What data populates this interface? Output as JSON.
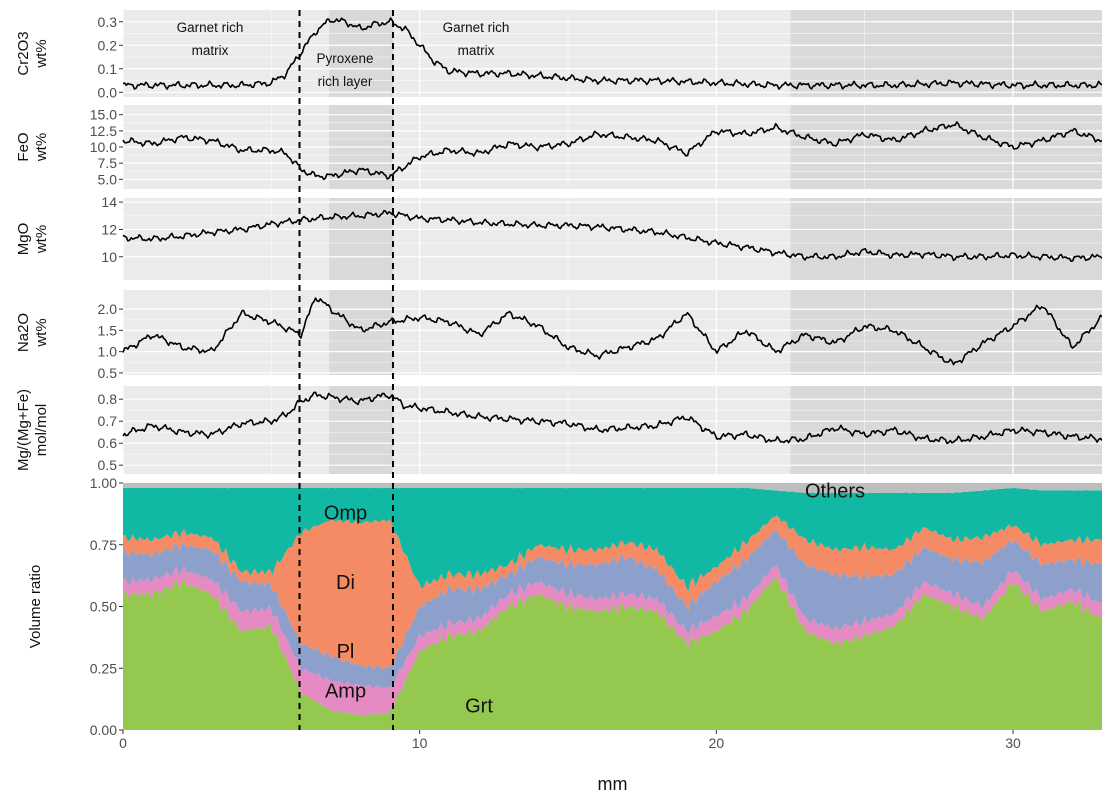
{
  "chart_data": [
    {
      "type": "line",
      "ylabel": [
        "Cr2O3",
        "wt%"
      ],
      "ylim": [
        -0.02,
        0.35
      ],
      "yticks": [
        0.0,
        0.1,
        0.2,
        0.3
      ],
      "ytick_labels": [
        "0.0",
        "0.1",
        "0.2",
        "0.3"
      ],
      "series": [
        {
          "x": [
            0,
            1,
            2,
            3,
            4,
            5,
            5.5,
            6,
            6.5,
            7,
            7.5,
            8,
            8.5,
            9,
            9.5,
            10,
            10.5,
            11,
            12,
            13,
            14,
            15,
            16,
            18,
            20,
            22,
            24,
            26,
            28,
            30,
            32,
            33
          ],
          "y": [
            0.03,
            0.03,
            0.03,
            0.03,
            0.03,
            0.04,
            0.08,
            0.17,
            0.26,
            0.31,
            0.3,
            0.27,
            0.29,
            0.3,
            0.27,
            0.2,
            0.13,
            0.09,
            0.08,
            0.08,
            0.07,
            0.06,
            0.05,
            0.05,
            0.04,
            0.03,
            0.03,
            0.03,
            0.04,
            0.03,
            0.03,
            0.03
          ]
        }
      ]
    },
    {
      "type": "line",
      "ylabel": [
        "FeO",
        "wt%"
      ],
      "ylim": [
        3.5,
        16.5
      ],
      "yticks": [
        5.0,
        7.5,
        10.0,
        12.5,
        15.0
      ],
      "ytick_labels": [
        "5.0",
        "7.5",
        "10.0",
        "12.5",
        "15.0"
      ],
      "series": [
        {
          "x": [
            0,
            1,
            2,
            3,
            4,
            5,
            5.5,
            6,
            6.5,
            7,
            7.5,
            8,
            8.5,
            9,
            9.5,
            10,
            11,
            12,
            13,
            14,
            15,
            16,
            17,
            18,
            19,
            20,
            21,
            22,
            23,
            24,
            25,
            26,
            27,
            28,
            29,
            30,
            31,
            32,
            33
          ],
          "y": [
            11.0,
            10.5,
            11.5,
            11.0,
            9.5,
            9.5,
            9.0,
            6.5,
            5.5,
            5.5,
            6.0,
            6.5,
            6.0,
            5.5,
            7.0,
            8.5,
            9.5,
            9.0,
            10.5,
            10.0,
            10.5,
            12.0,
            11.5,
            11.0,
            9.0,
            12.5,
            12.0,
            13.0,
            11.5,
            10.5,
            12.0,
            11.0,
            12.5,
            13.5,
            11.5,
            10.0,
            11.0,
            12.5,
            11.0
          ]
        }
      ]
    },
    {
      "type": "line",
      "ylabel": [
        "MgO",
        "wt%"
      ],
      "ylim": [
        8.3,
        14.3
      ],
      "yticks": [
        10,
        12,
        14
      ],
      "ytick_labels": [
        "10",
        "12",
        "14"
      ],
      "series": [
        {
          "x": [
            0,
            1,
            2,
            3,
            4,
            5,
            6,
            7,
            8,
            9,
            10,
            11,
            12,
            13,
            14,
            15,
            16,
            17,
            18,
            19,
            20,
            21,
            22,
            23,
            24,
            25,
            26,
            27,
            28,
            29,
            30,
            31,
            32,
            33
          ],
          "y": [
            11.4,
            11.3,
            11.5,
            11.8,
            12.0,
            12.4,
            12.7,
            12.9,
            13.0,
            13.2,
            12.8,
            12.7,
            12.5,
            12.4,
            12.3,
            12.3,
            12.2,
            12.0,
            11.8,
            11.4,
            11.0,
            10.7,
            10.3,
            10.0,
            10.0,
            10.4,
            10.1,
            10.2,
            10.0,
            10.0,
            10.1,
            10.0,
            9.9,
            10.0
          ]
        }
      ]
    },
    {
      "type": "line",
      "ylabel": [
        "Na2O",
        "wt%"
      ],
      "ylim": [
        0.45,
        2.45
      ],
      "yticks": [
        0.5,
        1.0,
        1.5,
        2.0
      ],
      "ytick_labels": [
        "0.5",
        "1.0",
        "1.5",
        "2.0"
      ],
      "series": [
        {
          "x": [
            0,
            1,
            2,
            3,
            4,
            5,
            6,
            6.5,
            7,
            8,
            9,
            10,
            11,
            12,
            13,
            14,
            15,
            16,
            17,
            18,
            19,
            20,
            21,
            22,
            23,
            24,
            25,
            26,
            27,
            28,
            29,
            30,
            31,
            32,
            33
          ],
          "y": [
            1.0,
            1.4,
            1.1,
            1.0,
            1.9,
            1.7,
            1.4,
            2.3,
            2.0,
            1.5,
            1.7,
            1.8,
            1.7,
            1.4,
            1.9,
            1.6,
            1.1,
            0.9,
            1.1,
            1.3,
            1.9,
            1.0,
            1.5,
            1.0,
            1.4,
            1.2,
            1.6,
            1.5,
            1.1,
            0.7,
            1.2,
            1.6,
            2.1,
            1.1,
            1.8
          ]
        }
      ]
    },
    {
      "type": "line",
      "ylabel": [
        "Mg/(Mg+Fe)",
        "mol/mol"
      ],
      "ylim": [
        0.46,
        0.86
      ],
      "yticks": [
        0.5,
        0.6,
        0.7,
        0.8
      ],
      "ytick_labels": [
        "0.5",
        "0.6",
        "0.7",
        "0.8"
      ],
      "series": [
        {
          "x": [
            0,
            1,
            2,
            3,
            4,
            5,
            5.5,
            6,
            6.5,
            7,
            7.5,
            8,
            8.5,
            9,
            9.5,
            10,
            11,
            12,
            13,
            14,
            15,
            16,
            17,
            18,
            19,
            20,
            21,
            22,
            23,
            24,
            25,
            26,
            27,
            28,
            29,
            30,
            31,
            32,
            33
          ],
          "y": [
            0.64,
            0.68,
            0.65,
            0.64,
            0.69,
            0.7,
            0.73,
            0.79,
            0.82,
            0.81,
            0.8,
            0.79,
            0.81,
            0.82,
            0.77,
            0.76,
            0.74,
            0.72,
            0.71,
            0.7,
            0.69,
            0.66,
            0.67,
            0.68,
            0.72,
            0.63,
            0.64,
            0.61,
            0.62,
            0.67,
            0.64,
            0.66,
            0.62,
            0.61,
            0.63,
            0.66,
            0.65,
            0.63,
            0.62
          ]
        }
      ]
    },
    {
      "type": "area",
      "ylabel": "Volume ratio",
      "xlabel": "mm",
      "xlim": [
        0,
        33
      ],
      "xticks": [
        0,
        10,
        20,
        30
      ],
      "xtick_labels": [
        "0",
        "10",
        "20",
        "30"
      ],
      "ylim": [
        0,
        1
      ],
      "yticks": [
        0,
        0.25,
        0.5,
        0.75,
        1.0
      ],
      "ytick_labels": [
        "0.00",
        "0.25",
        "0.50",
        "0.75",
        "1.00"
      ],
      "x": [
        0,
        1,
        2,
        3,
        4,
        5,
        6,
        7,
        8,
        9,
        10,
        11,
        12,
        13,
        14,
        15,
        16,
        17,
        18,
        19,
        20,
        21,
        22,
        23,
        24,
        25,
        26,
        27,
        28,
        29,
        30,
        31,
        32,
        33
      ],
      "series": [
        {
          "name": "Grt",
          "color": "#95c84e",
          "values": [
            0.55,
            0.55,
            0.6,
            0.55,
            0.4,
            0.42,
            0.15,
            0.08,
            0.06,
            0.07,
            0.32,
            0.38,
            0.4,
            0.5,
            0.55,
            0.5,
            0.48,
            0.5,
            0.48,
            0.35,
            0.4,
            0.48,
            0.62,
            0.4,
            0.35,
            0.38,
            0.42,
            0.55,
            0.5,
            0.45,
            0.6,
            0.48,
            0.52,
            0.45
          ]
        },
        {
          "name": "Amp",
          "color": "#e68ac3",
          "values": [
            0.05,
            0.06,
            0.05,
            0.06,
            0.08,
            0.07,
            0.1,
            0.12,
            0.12,
            0.1,
            0.06,
            0.05,
            0.05,
            0.05,
            0.05,
            0.05,
            0.05,
            0.05,
            0.05,
            0.05,
            0.06,
            0.05,
            0.05,
            0.05,
            0.06,
            0.06,
            0.05,
            0.05,
            0.05,
            0.05,
            0.05,
            0.05,
            0.05,
            0.06
          ]
        },
        {
          "name": "Pl",
          "color": "#8da0cb",
          "values": [
            0.12,
            0.1,
            0.1,
            0.12,
            0.12,
            0.1,
            0.1,
            0.1,
            0.08,
            0.08,
            0.12,
            0.14,
            0.12,
            0.08,
            0.1,
            0.12,
            0.14,
            0.15,
            0.12,
            0.1,
            0.14,
            0.16,
            0.14,
            0.22,
            0.22,
            0.18,
            0.16,
            0.14,
            0.14,
            0.18,
            0.12,
            0.14,
            0.12,
            0.16
          ]
        },
        {
          "name": "Di",
          "color": "#f48b64",
          "values": [
            0.06,
            0.06,
            0.05,
            0.05,
            0.04,
            0.05,
            0.45,
            0.55,
            0.58,
            0.6,
            0.08,
            0.06,
            0.06,
            0.04,
            0.05,
            0.06,
            0.06,
            0.06,
            0.08,
            0.08,
            0.06,
            0.07,
            0.06,
            0.1,
            0.1,
            0.12,
            0.1,
            0.08,
            0.08,
            0.1,
            0.06,
            0.08,
            0.08,
            0.1
          ]
        },
        {
          "name": "Omp",
          "color": "#11b8a4",
          "values": [
            0.2,
            0.21,
            0.18,
            0.2,
            0.34,
            0.34,
            0.18,
            0.13,
            0.14,
            0.13,
            0.4,
            0.35,
            0.35,
            0.31,
            0.23,
            0.25,
            0.25,
            0.22,
            0.25,
            0.4,
            0.32,
            0.22,
            0.1,
            0.19,
            0.23,
            0.22,
            0.23,
            0.14,
            0.19,
            0.19,
            0.15,
            0.22,
            0.2,
            0.2
          ]
        },
        {
          "name": "Others",
          "color": "#bebebe",
          "values": [
            0.02,
            0.02,
            0.02,
            0.02,
            0.02,
            0.02,
            0.02,
            0.02,
            0.02,
            0.02,
            0.02,
            0.02,
            0.02,
            0.02,
            0.02,
            0.02,
            0.02,
            0.02,
            0.02,
            0.02,
            0.02,
            0.02,
            0.03,
            0.04,
            0.04,
            0.04,
            0.04,
            0.04,
            0.04,
            0.03,
            0.02,
            0.03,
            0.03,
            0.03
          ]
        }
      ],
      "labels": [
        {
          "text": "Omp",
          "x": 7.5,
          "y": 0.88
        },
        {
          "text": "Di",
          "x": 7.5,
          "y": 0.6
        },
        {
          "text": "Pl",
          "x": 7.5,
          "y": 0.32
        },
        {
          "text": "Amp",
          "x": 7.5,
          "y": 0.16
        },
        {
          "text": "Grt",
          "x": 12.0,
          "y": 0.1
        },
        {
          "text": "Others",
          "x": 24.0,
          "y": 0.97
        }
      ]
    }
  ],
  "annotations": {
    "left_region": [
      "Garnet rich",
      "matrix"
    ],
    "middle_region": [
      "Pyroxene",
      "rich layer"
    ],
    "right_region": [
      "Garnet rich",
      "matrix"
    ],
    "vlines_mm": [
      5.95,
      9.1
    ],
    "pyroxene_band_mm": [
      6.95,
      9.1
    ],
    "grey_region_mm": [
      22.5,
      33
    ]
  }
}
